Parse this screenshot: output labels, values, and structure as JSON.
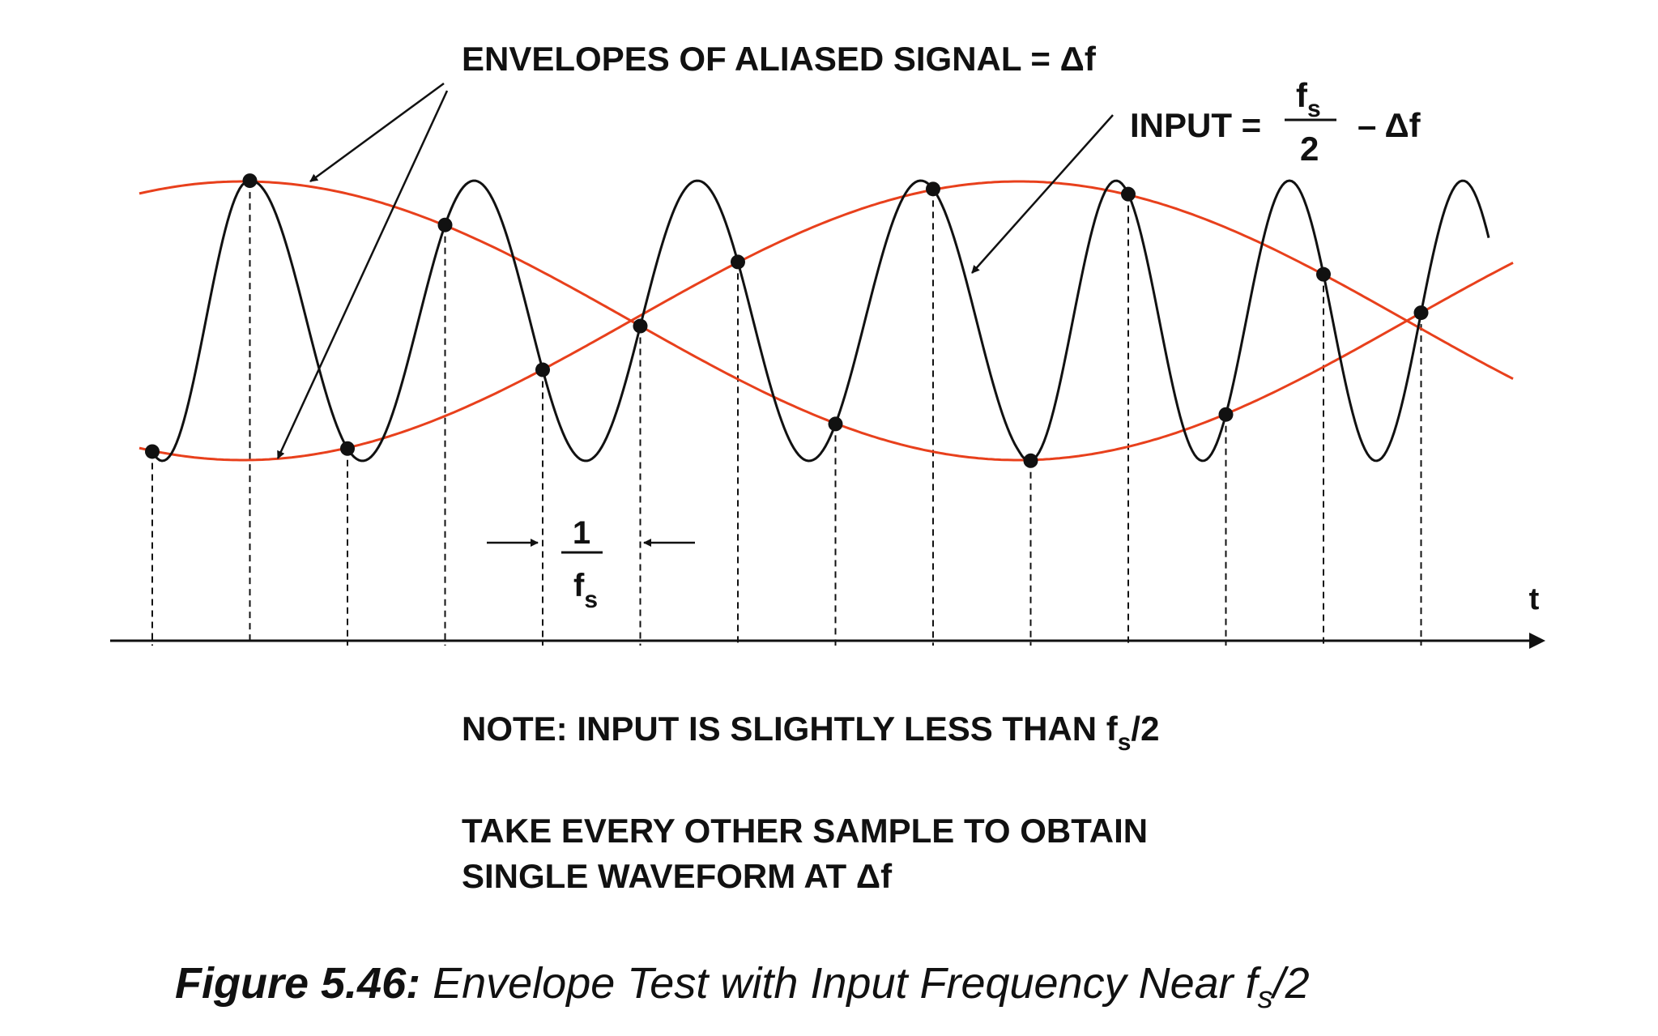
{
  "labels": {
    "envelopes": "ENVELOPES OF ALIASED SIGNAL = Δf",
    "input_prefix": "INPUT =",
    "input_num_f": "f",
    "input_num_sub": "s",
    "input_den": "2",
    "input_suffix": "– Δf",
    "interval_num": "1",
    "interval_den_f": "f",
    "interval_den_sub": "s",
    "axis_t": "t"
  },
  "notes": {
    "note_prefix": "NOTE: INPUT IS SLIGHTLY LESS THAN f",
    "note_sub": "s",
    "note_suffix": "/2",
    "take_line1": "TAKE EVERY OTHER SAMPLE TO OBTAIN",
    "take_line2": "SINGLE WAVEFORM AT Δf"
  },
  "caption": {
    "bold": "Figure 5.46:",
    "text_before_sub": " Envelope Test with Input Frequency Near f",
    "sub": "s",
    "after_sub": "/2"
  },
  "colors": {
    "waveform": "#111111",
    "envelope": "#e8401c",
    "axis": "#111111"
  }
}
